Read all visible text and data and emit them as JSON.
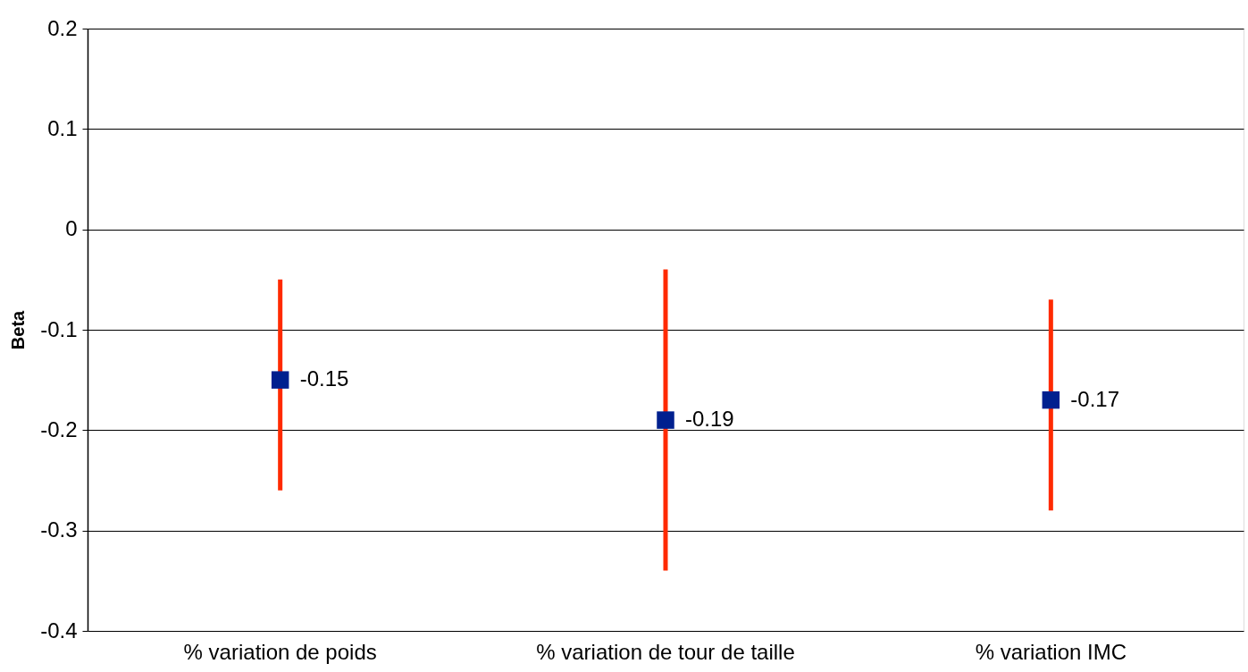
{
  "chart_data": {
    "type": "scatter",
    "ylabel": "Beta",
    "categories": [
      "% variation de poids",
      "% variation de tour de taille",
      "% variation IMC"
    ],
    "series": [
      {
        "color": "#00208f",
        "values": [
          -0.15,
          -0.19,
          -0.17
        ],
        "errors": [
          [
            -0.26,
            -0.05
          ],
          [
            -0.34,
            -0.04
          ],
          [
            -0.28,
            -0.07
          ]
        ]
      }
    ],
    "ylim": [
      -0.4,
      0.2
    ],
    "yticks": [
      -0.4,
      -0.3,
      -0.2,
      -0.1,
      0,
      0.1,
      0.2
    ],
    "grid": "y",
    "marker": "square",
    "data_labels": true
  }
}
